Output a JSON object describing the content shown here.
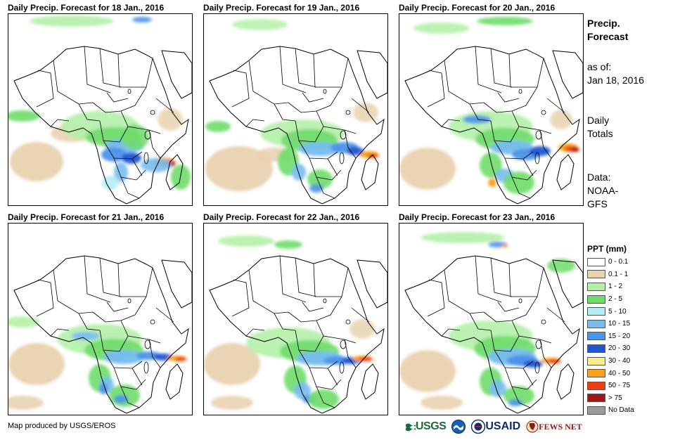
{
  "panels": [
    {
      "title": "Daily Precip. Forecast for 18 Jan., 2016"
    },
    {
      "title": "Daily Precip. Forecast for 19 Jan., 2016"
    },
    {
      "title": "Daily Precip. Forecast for 20 Jan., 2016"
    },
    {
      "title": "Daily Precip. Forecast for 21 Jan., 2016"
    },
    {
      "title": "Daily Precip. Forecast for 22 Jan., 2016"
    },
    {
      "title": "Daily Precip. Forecast for 23 Jan., 2016"
    }
  ],
  "side": {
    "title_line1": "Precip.",
    "title_line2": "Forecast",
    "asof_line1": "as of:",
    "asof_line2": "Jan 18, 2016",
    "totals_line1": "Daily",
    "totals_line2": "Totals",
    "data_line1": "Data:",
    "data_line2": "NOAA-",
    "data_line3": "GFS"
  },
  "legend": {
    "title": "PPT (mm)",
    "items": [
      {
        "label": "0 - 0.1",
        "color": "#ffffff"
      },
      {
        "label": "0.1 - 1",
        "color": "#e8d2b0"
      },
      {
        "label": "1 - 2",
        "color": "#b4f0a8"
      },
      {
        "label": "2 - 5",
        "color": "#6edc6a"
      },
      {
        "label": "5 - 10",
        "color": "#b4ecf4"
      },
      {
        "label": "10 - 15",
        "color": "#78bcf0"
      },
      {
        "label": "15 - 20",
        "color": "#4c92e8"
      },
      {
        "label": "20 - 30",
        "color": "#2056d4"
      },
      {
        "label": "30 - 40",
        "color": "#fcec90"
      },
      {
        "label": "40 - 50",
        "color": "#f8a41c"
      },
      {
        "label": "50 - 75",
        "color": "#f03c10"
      },
      {
        "label": "> 75",
        "color": "#a01818"
      },
      {
        "label": "No Data",
        "color": "#9a9a9a"
      }
    ]
  },
  "footer": {
    "credit": "Map produced by USGS/EROS",
    "usgs": "USGS",
    "usaid": "USAID",
    "fews": "FEWS NET"
  }
}
